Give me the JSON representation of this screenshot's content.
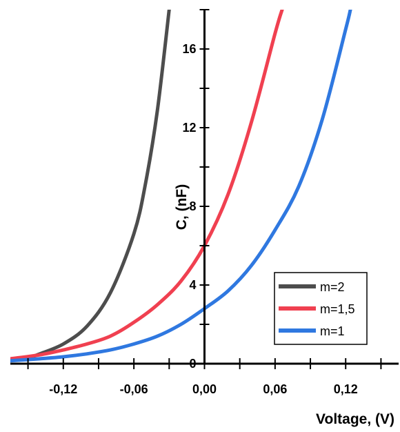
{
  "chart_data": {
    "type": "line",
    "xlabel": "Voltage, (V)",
    "ylabel": "C, (nF)",
    "xlim": [
      -0.165,
      0.165
    ],
    "ylim": [
      0,
      18
    ],
    "x_ticks": [
      "-0,12",
      "-0,06",
      "0,00",
      "0,06",
      "0,12"
    ],
    "y_ticks": [
      "0",
      "4",
      "8",
      "12",
      "16"
    ],
    "legend_position": "bottom-right",
    "grid": false,
    "series": [
      {
        "name": "m=2",
        "color": "#4d4d4d",
        "x": [
          -0.165,
          -0.15,
          -0.14,
          -0.12,
          -0.1,
          -0.08,
          -0.06,
          -0.05,
          -0.04,
          -0.03
        ],
        "y": [
          0.2,
          0.3,
          0.5,
          1.0,
          1.9,
          3.6,
          6.6,
          9.2,
          12.9,
          18.0
        ]
      },
      {
        "name": "m=1,5",
        "color": "#f04050",
        "x": [
          -0.165,
          -0.14,
          -0.12,
          -0.1,
          -0.08,
          -0.06,
          -0.04,
          -0.02,
          0.0,
          0.02,
          0.04,
          0.06,
          0.066
        ],
        "y": [
          0.25,
          0.45,
          0.7,
          1.0,
          1.4,
          2.1,
          3.0,
          4.2,
          6.0,
          8.6,
          12.3,
          16.8,
          18.0
        ]
      },
      {
        "name": "m=1",
        "color": "#2f78e0",
        "x": [
          -0.165,
          -0.14,
          -0.12,
          -0.1,
          -0.08,
          -0.06,
          -0.04,
          -0.02,
          0.0,
          0.02,
          0.04,
          0.06,
          0.08,
          0.1,
          0.12,
          0.124
        ],
        "y": [
          0.15,
          0.25,
          0.35,
          0.5,
          0.7,
          1.0,
          1.4,
          2.0,
          2.8,
          3.7,
          5.0,
          6.8,
          9.0,
          12.4,
          17.0,
          18.0
        ]
      }
    ]
  }
}
